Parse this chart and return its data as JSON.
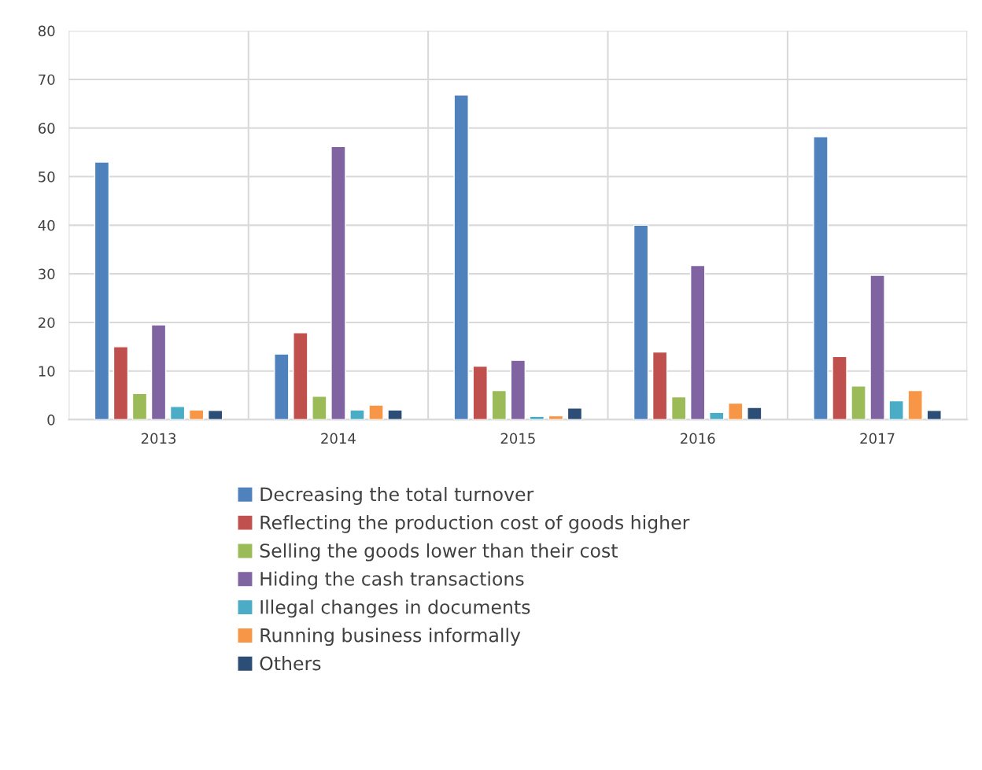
{
  "chart_data": {
    "type": "bar",
    "categories": [
      "2013",
      "2014",
      "2015",
      "2016",
      "2017"
    ],
    "series": [
      {
        "name": "Decreasing the total turnover",
        "color": "#4f81bd",
        "values": [
          53,
          13.5,
          66.8,
          40,
          58.2
        ]
      },
      {
        "name": "Reflecting the production cost of goods higher",
        "color": "#c0504d",
        "values": [
          15,
          17.9,
          11,
          13.9,
          13
        ]
      },
      {
        "name": "Selling the goods lower than their cost",
        "color": "#9bbb59",
        "values": [
          5.4,
          4.8,
          6,
          4.7,
          6.9
        ]
      },
      {
        "name": "Hiding the cash transactions",
        "color": "#8064a2",
        "values": [
          19.5,
          56.2,
          12.2,
          31.7,
          29.7
        ]
      },
      {
        "name": "Illegal changes in documents",
        "color": "#4bacc6",
        "values": [
          2.7,
          2,
          0.7,
          1.5,
          3.9
        ]
      },
      {
        "name": "Running business informally",
        "color": "#f79646",
        "values": [
          2,
          3,
          0.8,
          3.4,
          6
        ]
      },
      {
        "name": "Others",
        "color": "#2c4d75",
        "values": [
          1.9,
          2,
          2.4,
          2.5,
          1.9
        ]
      }
    ],
    "ylim": [
      0,
      80
    ],
    "yticks": [
      0,
      10,
      20,
      30,
      40,
      50,
      60,
      70,
      80
    ],
    "grid": true,
    "legend": "bottom"
  }
}
